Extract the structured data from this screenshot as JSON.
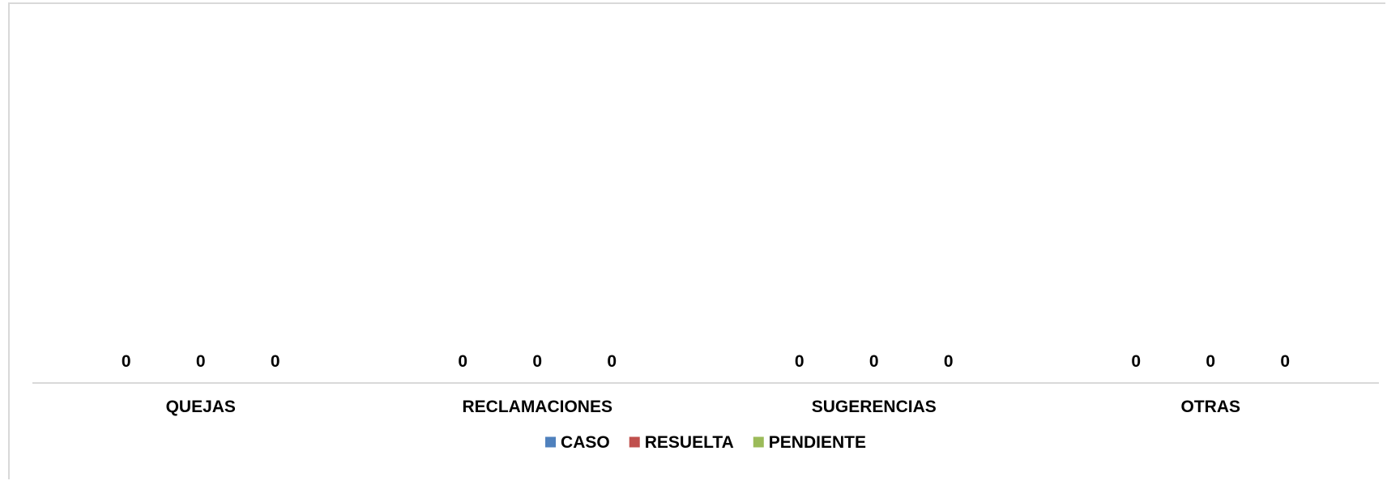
{
  "chart_data": {
    "type": "bar",
    "categories": [
      "QUEJAS",
      "RECLAMACIONES",
      "SUGERENCIAS",
      "OTRAS"
    ],
    "series": [
      {
        "name": "CASO",
        "values": [
          0,
          0,
          0,
          0
        ],
        "color": "#4F81BD"
      },
      {
        "name": "RESUELTA",
        "values": [
          0,
          0,
          0,
          0
        ],
        "color": "#C0504D"
      },
      {
        "name": "PENDIENTE",
        "values": [
          0,
          0,
          0,
          0
        ],
        "color": "#9BBB59"
      }
    ],
    "data_labels": true,
    "grid": false,
    "legend_position": "bottom",
    "title": "",
    "xlabel": "",
    "ylabel": ""
  }
}
